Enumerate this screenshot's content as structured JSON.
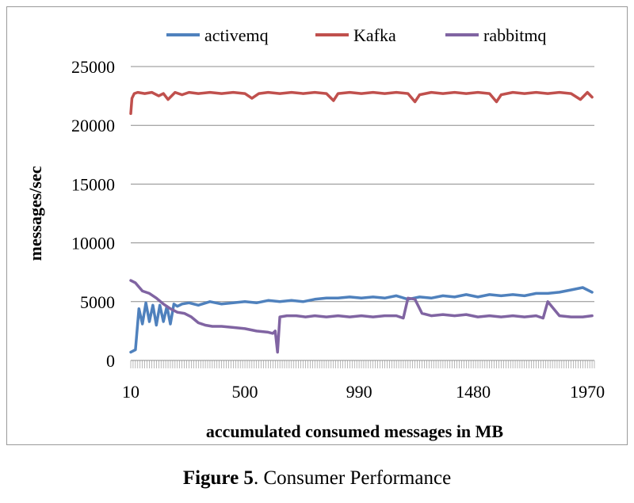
{
  "chart_data": {
    "type": "line",
    "xlabel": "accumulated consumed messages in MB",
    "ylabel": "messages/sec",
    "ylim": [
      0,
      25000
    ],
    "yticks": [
      0,
      5000,
      10000,
      15000,
      20000,
      25000
    ],
    "xlim": [
      10,
      2000
    ],
    "xticks": [
      10,
      500,
      990,
      1480,
      1970
    ],
    "grid": true,
    "legend": "top",
    "series": [
      {
        "name": "activemq",
        "color": "#4f81bd",
        "x": [
          10,
          30,
          45,
          60,
          75,
          90,
          105,
          120,
          135,
          150,
          165,
          180,
          195,
          210,
          230,
          260,
          300,
          350,
          400,
          450,
          500,
          550,
          600,
          650,
          700,
          750,
          800,
          850,
          900,
          950,
          1000,
          1050,
          1100,
          1150,
          1200,
          1250,
          1300,
          1350,
          1400,
          1450,
          1500,
          1550,
          1600,
          1650,
          1700,
          1750,
          1800,
          1850,
          1900,
          1950,
          1990
        ],
        "values": [
          700,
          900,
          4400,
          3100,
          4900,
          3300,
          4700,
          3000,
          4700,
          3300,
          4600,
          3100,
          4800,
          4600,
          4800,
          4900,
          4700,
          5000,
          4800,
          4900,
          5000,
          4900,
          5100,
          5000,
          5100,
          5000,
          5200,
          5300,
          5300,
          5400,
          5300,
          5400,
          5300,
          5500,
          5200,
          5400,
          5300,
          5500,
          5400,
          5600,
          5400,
          5600,
          5500,
          5600,
          5500,
          5700,
          5700,
          5800,
          6000,
          6200,
          5800
        ]
      },
      {
        "name": "Kafka",
        "color": "#c0504d",
        "x": [
          10,
          15,
          25,
          40,
          70,
          100,
          130,
          150,
          170,
          200,
          230,
          260,
          300,
          350,
          400,
          450,
          500,
          530,
          560,
          600,
          650,
          700,
          750,
          800,
          850,
          880,
          900,
          950,
          1000,
          1050,
          1100,
          1150,
          1200,
          1230,
          1250,
          1300,
          1350,
          1400,
          1450,
          1500,
          1550,
          1580,
          1600,
          1650,
          1700,
          1750,
          1800,
          1850,
          1900,
          1940,
          1970,
          1990
        ],
        "values": [
          21000,
          22300,
          22700,
          22800,
          22700,
          22800,
          22500,
          22700,
          22200,
          22800,
          22600,
          22800,
          22700,
          22800,
          22700,
          22800,
          22700,
          22300,
          22700,
          22800,
          22700,
          22800,
          22700,
          22800,
          22700,
          22100,
          22700,
          22800,
          22700,
          22800,
          22700,
          22800,
          22700,
          22000,
          22600,
          22800,
          22700,
          22800,
          22700,
          22800,
          22700,
          22000,
          22600,
          22800,
          22700,
          22800,
          22700,
          22800,
          22700,
          22200,
          22800,
          22400
        ]
      },
      {
        "name": "rabbitmq",
        "color": "#8064a2",
        "x": [
          10,
          30,
          60,
          90,
          120,
          150,
          180,
          210,
          240,
          270,
          300,
          330,
          360,
          400,
          450,
          500,
          550,
          600,
          620,
          630,
          640,
          650,
          680,
          720,
          760,
          800,
          850,
          900,
          950,
          1000,
          1050,
          1100,
          1150,
          1180,
          1200,
          1230,
          1260,
          1300,
          1350,
          1400,
          1450,
          1500,
          1550,
          1600,
          1650,
          1700,
          1750,
          1780,
          1800,
          1850,
          1900,
          1950,
          1990
        ],
        "values": [
          6800,
          6600,
          5900,
          5700,
          5300,
          4800,
          4400,
          4100,
          4000,
          3700,
          3200,
          3000,
          2900,
          2900,
          2800,
          2700,
          2500,
          2400,
          2300,
          2500,
          700,
          3700,
          3800,
          3800,
          3700,
          3800,
          3700,
          3800,
          3700,
          3800,
          3700,
          3800,
          3800,
          3600,
          5300,
          5200,
          4000,
          3800,
          3900,
          3800,
          3900,
          3700,
          3800,
          3700,
          3800,
          3700,
          3800,
          3600,
          5000,
          3800,
          3700,
          3700,
          3800
        ]
      }
    ]
  },
  "caption": {
    "figure_label": "Figure 5",
    "text": ". Consumer Performance"
  }
}
